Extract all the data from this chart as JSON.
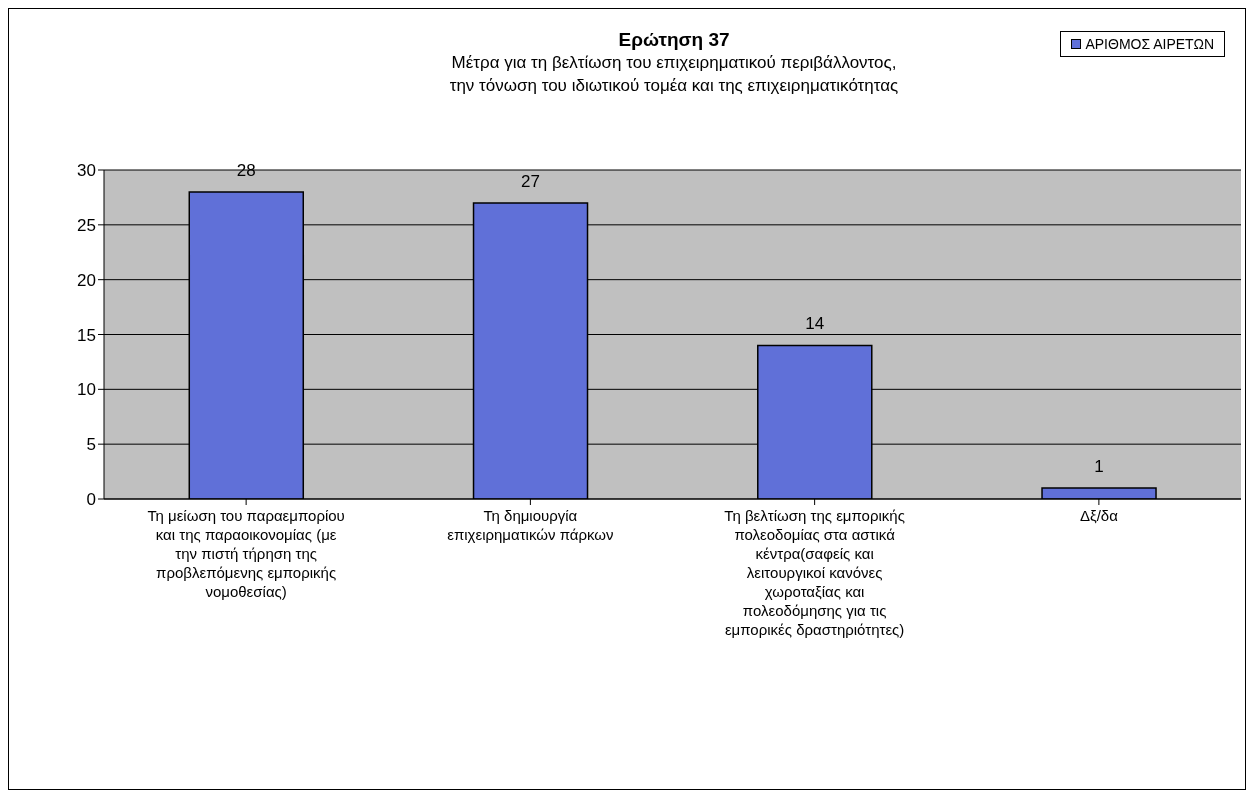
{
  "chart_data": {
    "type": "bar",
    "title": "Ερώτηση 37",
    "subtitle": "Μέτρα για τη βελτίωση του επιχειρηματικού περιβάλλοντος,\nτην τόνωση του ιδιωτικού τομέα και της επιχειρηματικότητας",
    "categories": [
      "Τη μείωση του παραεμπορίου και της παραοικονομίας (με την πιστή τήρηση της προβλεπόμενης εμπορικής νομοθεσίας)",
      "Τη δημιουργία επιχειρηματικών πάρκων",
      "Τη βελτίωση της εμπορικής πολεοδομίας στα αστικά κέντρα(σαφείς και λειτουργικοί κανόνες χωροταξίας και πολεοδόμησης για τις εμπορικές δραστηριότητες)",
      "Δξ/δα"
    ],
    "series": [
      {
        "name": "ΑΡΙΘΜΟΣ ΑΙΡΕΤΩΝ",
        "color": "#6070d8",
        "values": [
          28,
          27,
          14,
          1
        ]
      }
    ],
    "ylim": [
      0,
      30
    ],
    "yticks": [
      0,
      5,
      10,
      15,
      20,
      25,
      30
    ],
    "grid": "y",
    "legend": "top right",
    "data_labels": true
  }
}
